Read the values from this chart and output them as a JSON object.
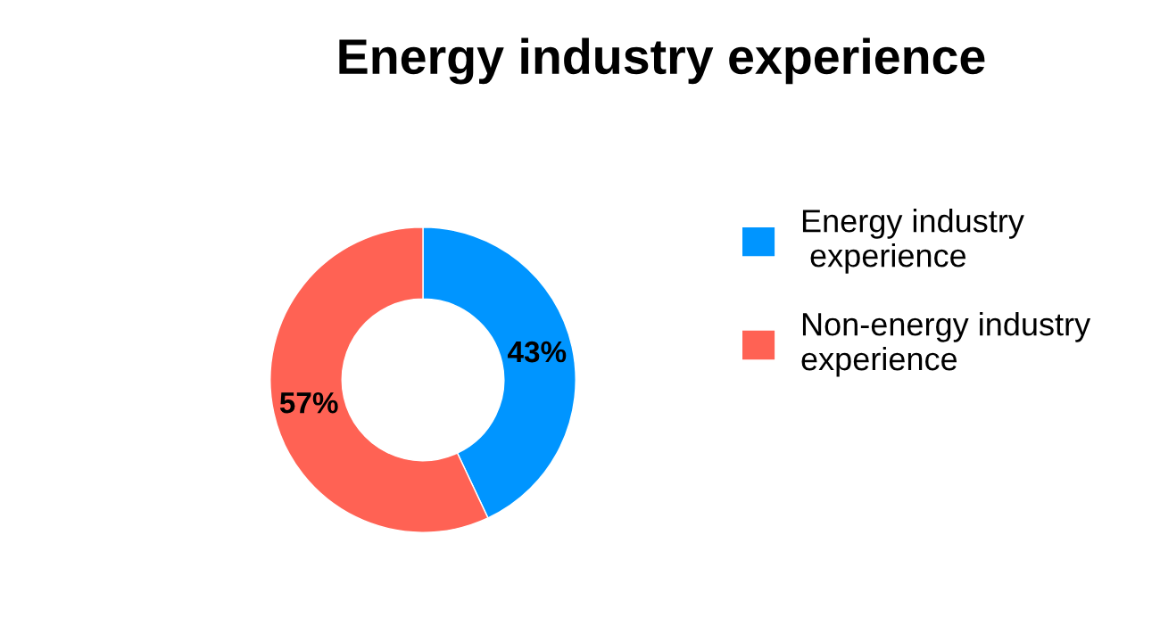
{
  "chart_data": {
    "type": "donut",
    "title": "Energy industry experience",
    "categories": [
      "Energy industry\n experience",
      "Non-energy industry\nexperience"
    ],
    "values": [
      43,
      57
    ],
    "colors": [
      "#0095ff",
      "#ff6254"
    ],
    "value_labels": [
      "43%",
      "57%"
    ],
    "legend": "right"
  }
}
